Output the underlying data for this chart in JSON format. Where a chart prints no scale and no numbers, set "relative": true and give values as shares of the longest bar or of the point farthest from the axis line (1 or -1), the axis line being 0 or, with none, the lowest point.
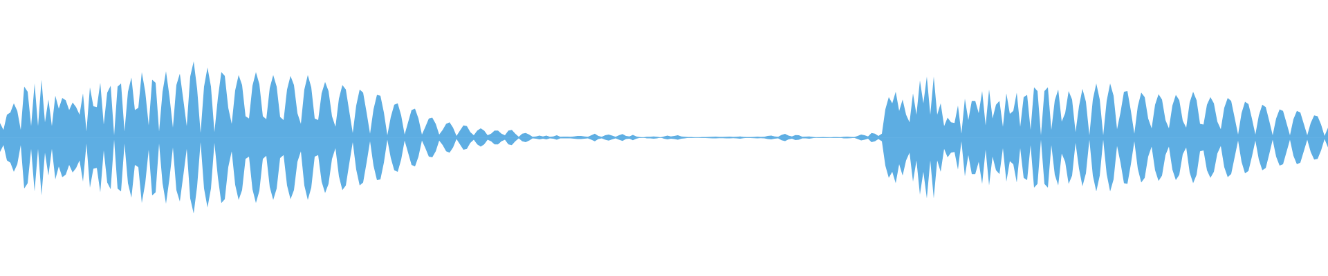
{
  "chart_data": {
    "type": "area",
    "relative": true,
    "ref_lines": [
      {
        "axis": "y",
        "value": 0,
        "color": "#5dade2"
      }
    ],
    "categories": [
      null,
      null,
      null,
      null,
      null,
      null,
      null,
      null,
      null,
      null,
      null,
      null,
      null,
      null,
      null,
      null,
      null,
      null,
      null,
      null,
      null,
      null,
      null,
      null,
      null,
      null,
      null,
      null,
      null,
      null,
      null,
      null,
      null,
      null,
      null,
      null,
      null,
      null,
      null,
      null,
      null,
      null,
      null,
      null,
      null,
      null,
      null,
      null,
      null,
      null,
      null,
      null,
      null,
      null,
      null,
      null,
      null,
      null,
      null,
      null,
      null,
      null,
      null,
      null,
      null,
      null,
      null,
      null,
      null,
      null,
      null,
      null,
      null,
      null,
      null,
      null,
      null,
      null,
      null,
      null,
      null,
      null,
      null,
      null,
      null,
      null,
      null,
      null,
      null,
      null,
      null,
      null,
      null,
      null,
      null,
      null,
      null,
      null,
      null,
      null,
      null,
      null,
      null,
      null,
      null,
      null,
      null,
      null,
      null,
      null,
      null,
      null,
      null,
      null,
      null,
      null,
      null,
      null,
      null,
      null,
      null,
      null,
      null,
      null,
      null,
      null,
      null,
      null,
      null,
      null,
      null,
      null,
      null,
      null,
      null,
      null,
      null,
      null,
      null,
      null,
      null,
      null,
      null,
      null,
      null,
      null,
      null,
      null,
      null,
      null,
      null,
      null,
      null,
      null,
      null,
      null,
      null,
      null,
      null,
      null,
      null,
      null,
      null,
      null,
      null,
      null,
      null,
      null,
      null,
      null,
      null,
      null,
      null,
      null,
      null,
      null,
      null,
      null,
      null,
      null,
      null,
      null,
      null,
      null,
      null,
      null,
      null,
      null,
      null,
      null,
      null,
      null,
      null,
      null,
      null,
      null,
      null,
      null,
      null,
      null,
      null,
      null,
      null,
      null,
      null,
      null,
      null,
      null,
      null,
      null,
      null,
      null,
      null,
      null,
      null,
      null,
      null,
      null,
      null,
      null,
      null,
      null,
      null,
      null,
      null,
      null,
      null,
      null,
      null,
      null,
      null,
      null,
      null,
      null,
      null,
      null,
      null,
      null,
      null,
      null,
      null,
      null,
      null,
      null,
      null,
      null,
      null,
      null,
      null,
      null,
      null,
      null,
      null,
      null,
      null,
      null,
      null,
      null,
      null,
      null,
      null,
      null,
      null,
      null,
      null,
      null,
      null,
      null,
      null,
      null,
      null,
      null,
      null,
      null,
      null,
      null,
      null,
      null,
      null,
      null,
      null,
      null,
      null,
      null,
      null,
      null,
      null,
      null,
      null,
      null,
      null,
      null,
      null,
      null,
      null,
      null,
      null,
      null,
      null,
      null,
      null,
      null,
      null,
      null,
      null,
      null,
      null,
      null,
      null,
      null,
      null,
      null,
      null,
      null,
      null,
      null,
      null,
      null,
      null,
      null,
      null,
      null,
      null,
      null,
      null,
      null,
      null,
      null,
      null,
      null,
      null,
      null,
      null,
      null,
      null,
      null,
      null,
      null,
      null,
      null,
      null,
      null,
      null,
      null,
      null,
      null,
      null,
      null,
      null,
      null,
      null,
      null,
      null,
      null,
      null,
      null,
      null,
      null,
      null,
      null,
      null,
      null,
      null,
      null,
      null,
      null,
      null,
      null,
      null,
      null,
      null,
      null,
      null,
      null,
      null,
      null,
      null,
      null,
      null,
      null,
      null,
      null,
      null,
      null,
      null
    ],
    "series": [
      {
        "color": "#5dade2",
        "values": [
          0.19,
          0.1,
          0.3,
          0.33,
          0.45,
          0.35,
          0.1,
          0.67,
          0.6,
          0.15,
          0.71,
          0.15,
          0.76,
          0.2,
          0.5,
          0.15,
          0.55,
          0.38,
          0.52,
          0.49,
          0.36,
          0.46,
          0.4,
          0.3,
          0.58,
          0.08,
          0.66,
          0.41,
          0.4,
          0.72,
          0.17,
          0.59,
          0.68,
          0.03,
          0.67,
          0.71,
          0.08,
          0.6,
          0.79,
          0.36,
          0.39,
          0.86,
          0.6,
          0.16,
          0.76,
          0.72,
          0.08,
          0.6,
          0.87,
          0.54,
          0.13,
          0.69,
          0.84,
          0.5,
          0.15,
          0.8,
          1,
          0.64,
          0.06,
          0.67,
          0.92,
          0.67,
          0.07,
          0.52,
          0.86,
          0.81,
          0.39,
          0.18,
          0.62,
          0.82,
          0.69,
          0.28,
          0.25,
          0.68,
          0.86,
          0.7,
          0.28,
          0.24,
          0.65,
          0.82,
          0.67,
          0.27,
          0.23,
          0.63,
          0.81,
          0.69,
          0.32,
          0.18,
          0.63,
          0.82,
          0.66,
          0.25,
          0.23,
          0.58,
          0.73,
          0.61,
          0.28,
          0.14,
          0.51,
          0.69,
          0.63,
          0.34,
          0.06,
          0.42,
          0.63,
          0.59,
          0.33,
          0.05,
          0.37,
          0.56,
          0.55,
          0.33,
          0.03,
          0.27,
          0.43,
          0.45,
          0.29,
          0.04,
          0.2,
          0.36,
          0.38,
          0.25,
          0.04,
          0.14,
          0.25,
          0.26,
          0.18,
          0.04,
          0.1,
          0.18,
          0.2,
          0.13,
          0.02,
          0.09,
          0.16,
          0.15,
          0.07,
          0.03,
          0.09,
          0.12,
          0.09,
          0.03,
          0.05,
          0.09,
          0.09,
          0.05,
          0.03,
          0.09,
          0.1,
          0.05,
          0.01,
          0.05,
          0.06,
          0.04,
          0.01,
          0.015,
          0.025,
          0.015,
          0.025,
          0.01,
          0.015,
          0.03,
          0.01,
          0.012,
          0.012,
          0.01,
          0.015,
          0.02,
          0.02,
          0.015,
          0.01,
          0.03,
          0.05,
          0.02,
          0.01,
          0.03,
          0.04,
          0.025,
          0.01,
          0.03,
          0.045,
          0.02,
          0.015,
          0.035,
          0.015,
          0.005,
          0,
          0.01,
          0.01,
          0.015,
          0.01,
          0,
          0.015,
          0.025,
          0.015,
          0.02,
          0.03,
          0.015,
          0.01,
          0.005,
          0.005,
          0,
          0,
          0.005,
          0.006,
          0.008,
          0.01,
          0.012,
          0.008,
          0.008,
          0.01,
          0.012,
          0.008,
          0.01,
          0.015,
          0.008,
          0.005,
          0.006,
          0.008,
          0.012,
          0.008,
          0.01,
          0.02,
          0.025,
          0.015,
          0.01,
          0.035,
          0.048,
          0.025,
          0.015,
          0.033,
          0.03,
          0.01,
          0.012,
          0.015,
          0.008,
          0,
          0.003,
          0.005,
          0.003,
          0,
          0.005,
          0.005,
          0.003,
          0.01,
          0.012,
          0.008,
          0.005,
          0.02,
          0.038,
          0.03,
          0.015,
          0.06,
          0.05,
          0.02,
          0.05,
          0.37,
          0.53,
          0.45,
          0.6,
          0.35,
          0.5,
          0.3,
          0.2,
          0.58,
          0.3,
          0.75,
          0.45,
          0.8,
          0.3,
          0.8,
          0.3,
          0.45,
          0.15,
          0.26,
          0.2,
          0.19,
          0.42,
          0.05,
          0.51,
          0.23,
          0.48,
          0.48,
          0.32,
          0.61,
          0.16,
          0.63,
          0.25,
          0.43,
          0.48,
          0.14,
          0.58,
          0.31,
          0.35,
          0.59,
          0.14,
          0.53,
          0.56,
          0.1,
          0.66,
          0.61,
          0.03,
          0.61,
          0.66,
          0.1,
          0.49,
          0.63,
          0.21,
          0.32,
          0.61,
          0.5,
          0.07,
          0.41,
          0.64,
          0.47,
          0.03,
          0.5,
          0.71,
          0.5,
          0.03,
          0.48,
          0.71,
          0.55,
          0.11,
          0.33,
          0.6,
          0.61,
          0.35,
          0.05,
          0.41,
          0.59,
          0.53,
          0.25,
          0.12,
          0.43,
          0.57,
          0.5,
          0.23,
          0.12,
          0.42,
          0.56,
          0.49,
          0.22,
          0.13,
          0.46,
          0.6,
          0.49,
          0.18,
          0.17,
          0.43,
          0.53,
          0.45,
          0.21,
          0.11,
          0.39,
          0.52,
          0.48,
          0.26,
          0.04,
          0.32,
          0.47,
          0.44,
          0.25,
          0.04,
          0.29,
          0.43,
          0.4,
          0.22,
          0.03,
          0.25,
          0.37,
          0.35,
          0.19,
          0.03,
          0.24,
          0.35,
          0.33,
          0.18,
          0.03,
          0.19,
          0.29,
          0.28,
          0.17,
          0.02,
          0.13
        ]
      },
      {
        "color": "#5eaee3",
        "values": [
          -0.19,
          -0.1,
          -0.3,
          -0.33,
          -0.45,
          -0.35,
          -0.1,
          -0.67,
          -0.6,
          -0.15,
          -0.71,
          -0.15,
          -0.76,
          -0.2,
          -0.5,
          -0.15,
          -0.55,
          -0.38,
          -0.52,
          -0.49,
          -0.36,
          -0.46,
          -0.4,
          -0.3,
          -0.58,
          -0.08,
          -0.66,
          -0.41,
          -0.4,
          -0.72,
          -0.17,
          -0.59,
          -0.68,
          -0.03,
          -0.67,
          -0.71,
          -0.08,
          -0.6,
          -0.79,
          -0.36,
          -0.39,
          -0.86,
          -0.6,
          -0.16,
          -0.76,
          -0.72,
          -0.08,
          -0.6,
          -0.87,
          -0.54,
          -0.13,
          -0.69,
          -0.84,
          -0.5,
          -0.15,
          -0.8,
          -1,
          -0.64,
          -0.06,
          -0.67,
          -0.92,
          -0.67,
          -0.07,
          -0.52,
          -0.86,
          -0.81,
          -0.39,
          -0.18,
          -0.62,
          -0.82,
          -0.69,
          -0.28,
          -0.25,
          -0.68,
          -0.86,
          -0.7,
          -0.28,
          -0.24,
          -0.65,
          -0.82,
          -0.67,
          -0.27,
          -0.23,
          -0.63,
          -0.81,
          -0.69,
          -0.32,
          -0.18,
          -0.63,
          -0.82,
          -0.66,
          -0.25,
          -0.23,
          -0.58,
          -0.73,
          -0.61,
          -0.28,
          -0.14,
          -0.51,
          -0.69,
          -0.63,
          -0.34,
          -0.06,
          -0.42,
          -0.63,
          -0.59,
          -0.33,
          -0.05,
          -0.37,
          -0.56,
          -0.55,
          -0.33,
          -0.03,
          -0.27,
          -0.43,
          -0.45,
          -0.29,
          -0.04,
          -0.2,
          -0.36,
          -0.38,
          -0.25,
          -0.04,
          -0.14,
          -0.25,
          -0.26,
          -0.18,
          -0.04,
          -0.1,
          -0.18,
          -0.2,
          -0.13,
          -0.02,
          -0.09,
          -0.16,
          -0.15,
          -0.07,
          -0.03,
          -0.09,
          -0.12,
          -0.09,
          -0.03,
          -0.05,
          -0.09,
          -0.09,
          -0.05,
          -0.03,
          -0.09,
          -0.1,
          -0.05,
          -0.01,
          -0.05,
          -0.06,
          -0.04,
          -0.01,
          -0.015,
          -0.025,
          -0.015,
          -0.025,
          -0.01,
          -0.015,
          -0.03,
          -0.01,
          -0.012,
          -0.012,
          -0.01,
          -0.015,
          -0.02,
          -0.02,
          -0.015,
          -0.01,
          -0.03,
          -0.05,
          -0.02,
          -0.01,
          -0.03,
          -0.04,
          -0.025,
          -0.01,
          -0.03,
          -0.045,
          -0.02,
          -0.015,
          -0.035,
          -0.015,
          -0.005,
          0,
          -0.01,
          -0.01,
          -0.015,
          -0.01,
          0,
          -0.015,
          -0.025,
          -0.015,
          -0.02,
          -0.03,
          -0.015,
          -0.01,
          -0.005,
          -0.005,
          0,
          0,
          -0.005,
          -0.006,
          -0.008,
          -0.01,
          -0.012,
          -0.008,
          -0.008,
          -0.01,
          -0.012,
          -0.008,
          -0.01,
          -0.015,
          -0.008,
          -0.005,
          -0.006,
          -0.008,
          -0.012,
          -0.008,
          -0.01,
          -0.02,
          -0.025,
          -0.015,
          -0.01,
          -0.035,
          -0.048,
          -0.025,
          -0.015,
          -0.033,
          -0.03,
          -0.01,
          -0.012,
          -0.015,
          -0.008,
          0,
          -0.003,
          -0.005,
          -0.003,
          0,
          -0.005,
          -0.005,
          -0.003,
          -0.01,
          -0.012,
          -0.008,
          -0.005,
          -0.02,
          -0.038,
          -0.03,
          -0.015,
          -0.06,
          -0.05,
          -0.02,
          -0.05,
          -0.37,
          -0.53,
          -0.45,
          -0.6,
          -0.35,
          -0.5,
          -0.3,
          -0.2,
          -0.58,
          -0.3,
          -0.75,
          -0.45,
          -0.8,
          -0.3,
          -0.8,
          -0.3,
          -0.45,
          -0.15,
          -0.26,
          -0.2,
          -0.19,
          -0.42,
          -0.05,
          -0.51,
          -0.23,
          -0.48,
          -0.48,
          -0.32,
          -0.61,
          -0.16,
          -0.63,
          -0.25,
          -0.43,
          -0.48,
          -0.14,
          -0.58,
          -0.31,
          -0.35,
          -0.59,
          -0.14,
          -0.53,
          -0.56,
          -0.1,
          -0.66,
          -0.61,
          -0.03,
          -0.61,
          -0.66,
          -0.1,
          -0.49,
          -0.63,
          -0.21,
          -0.32,
          -0.61,
          -0.5,
          -0.07,
          -0.41,
          -0.64,
          -0.47,
          -0.03,
          -0.5,
          -0.71,
          -0.5,
          -0.03,
          -0.48,
          -0.71,
          -0.55,
          -0.11,
          -0.33,
          -0.6,
          -0.61,
          -0.35,
          -0.05,
          -0.41,
          -0.59,
          -0.53,
          -0.25,
          -0.12,
          -0.43,
          -0.57,
          -0.5,
          -0.23,
          -0.12,
          -0.42,
          -0.56,
          -0.49,
          -0.22,
          -0.13,
          -0.46,
          -0.6,
          -0.49,
          -0.18,
          -0.17,
          -0.43,
          -0.53,
          -0.45,
          -0.21,
          -0.11,
          -0.39,
          -0.52,
          -0.48,
          -0.26,
          -0.04,
          -0.32,
          -0.47,
          -0.44,
          -0.25,
          -0.04,
          -0.29,
          -0.43,
          -0.4,
          -0.22,
          -0.03,
          -0.25,
          -0.37,
          -0.35,
          -0.19,
          -0.03,
          -0.24,
          -0.35,
          -0.33,
          -0.18,
          -0.03,
          -0.19,
          -0.29,
          -0.28,
          -0.17,
          -0.02,
          -0.13
        ]
      }
    ]
  }
}
